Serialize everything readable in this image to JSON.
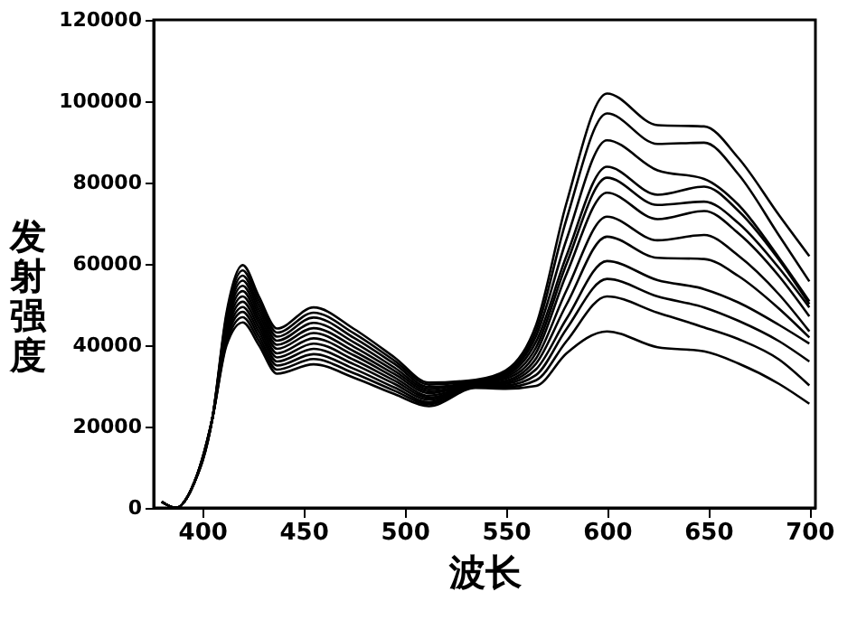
{
  "chart_data": {
    "type": "line",
    "xlabel": "波长",
    "ylabel": "发射强度",
    "x": [
      380,
      387,
      395,
      405,
      412,
      420,
      428,
      437,
      455,
      475,
      495,
      512,
      535,
      550,
      565,
      580,
      600,
      625,
      648,
      665,
      685,
      700
    ],
    "xlim": [
      376,
      703
    ],
    "xticks": [
      400,
      450,
      500,
      550,
      600,
      650,
      700
    ],
    "ylim": [
      0,
      120000
    ],
    "yticks": [
      0,
      20000,
      40000,
      60000,
      80000,
      100000,
      120000
    ],
    "grid": false,
    "legend": false,
    "marker": "none",
    "line_style": "solid",
    "series": [
      {
        "color": "#000000",
        "values": [
          1500,
          0,
          5000,
          22000,
          48000,
          59700,
          52000,
          44100,
          49300,
          44000,
          37000,
          30800,
          31500,
          33800,
          45000,
          75000,
          101900,
          94100,
          93800,
          86000,
          72000,
          61900
        ]
      },
      {
        "color": "#000000",
        "values": [
          1500,
          0,
          5000,
          22000,
          47300,
          58400,
          50900,
          43100,
          48000,
          42900,
          36200,
          30300,
          31300,
          33400,
          43600,
          71000,
          97000,
          89500,
          89800,
          82000,
          67000,
          55700
        ]
      },
      {
        "color": "#000000",
        "values": [
          1500,
          0,
          5000,
          22000,
          46500,
          57100,
          49800,
          42100,
          46800,
          41800,
          35400,
          29700,
          31100,
          33000,
          42300,
          66000,
          90400,
          83000,
          80900,
          74500,
          61500,
          50800
        ]
      },
      {
        "color": "#000000",
        "values": [
          1500,
          0,
          5000,
          22000,
          45800,
          55900,
          48700,
          41100,
          45500,
          40700,
          34500,
          29200,
          31000,
          32600,
          40900,
          62000,
          83900,
          77000,
          79000,
          73000,
          61000,
          50100
        ]
      },
      {
        "color": "#000000",
        "values": [
          1500,
          0,
          5000,
          22000,
          45100,
          54600,
          47600,
          40100,
          44200,
          39600,
          33700,
          28700,
          30800,
          32200,
          39500,
          60000,
          81200,
          74500,
          75300,
          70000,
          59000,
          49300
        ]
      },
      {
        "color": "#000000",
        "values": [
          1500,
          0,
          5000,
          22000,
          44400,
          53300,
          46500,
          39100,
          43000,
          38500,
          32900,
          28200,
          30600,
          31800,
          38200,
          57500,
          77500,
          71000,
          73000,
          67500,
          57000,
          47100
        ]
      },
      {
        "color": "#000000",
        "values": [
          1500,
          0,
          5000,
          22000,
          43600,
          52000,
          45500,
          38000,
          41700,
          37500,
          32100,
          27600,
          30400,
          31300,
          36800,
          53500,
          71600,
          65800,
          67100,
          62000,
          52500,
          43400
        ]
      },
      {
        "color": "#000000",
        "values": [
          1500,
          0,
          5000,
          22000,
          42900,
          50700,
          44400,
          37000,
          40400,
          36400,
          31300,
          27100,
          30200,
          30900,
          35500,
          50000,
          66700,
          61500,
          61200,
          57000,
          49000,
          41900
        ]
      },
      {
        "color": "#000000",
        "values": [
          1500,
          0,
          5000,
          22000,
          42200,
          49400,
          43300,
          36000,
          39100,
          35300,
          30500,
          26600,
          30000,
          30500,
          34100,
          46500,
          60700,
          56000,
          53800,
          50500,
          45000,
          40400
        ]
      },
      {
        "color": "#000000",
        "values": [
          1500,
          0,
          5000,
          22000,
          41500,
          48200,
          42200,
          35000,
          37800,
          34200,
          29600,
          26000,
          29900,
          30100,
          32700,
          44000,
          56300,
          52000,
          49300,
          46000,
          41000,
          36000
        ]
      },
      {
        "color": "#000000",
        "values": [
          1500,
          0,
          5000,
          22000,
          40700,
          46900,
          41100,
          34000,
          36600,
          33100,
          28800,
          25500,
          29700,
          29700,
          31400,
          41000,
          52000,
          48000,
          44400,
          41500,
          36500,
          30100
        ]
      },
      {
        "color": "#000000",
        "values": [
          1500,
          0,
          5000,
          22000,
          40000,
          45600,
          40000,
          33000,
          35300,
          32000,
          28000,
          25000,
          29500,
          29300,
          30000,
          38000,
          43400,
          39500,
          38500,
          35500,
          30500,
          25600
        ]
      }
    ]
  }
}
